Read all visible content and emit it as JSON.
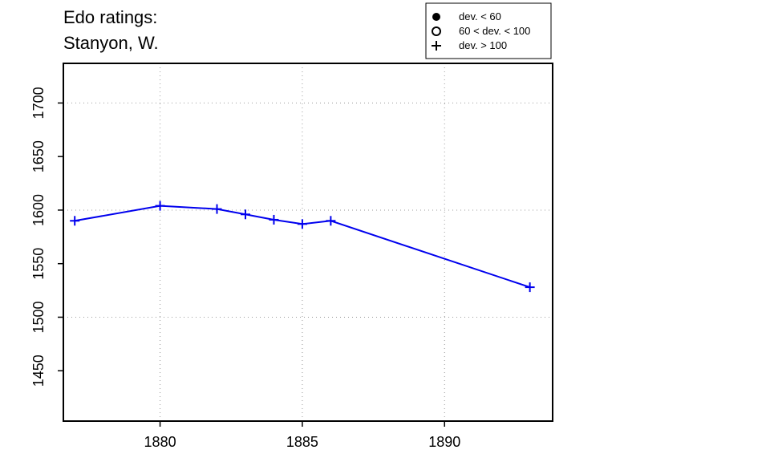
{
  "chart_data": {
    "type": "line",
    "title_lines": [
      "Edo ratings:",
      "Stanyon, W."
    ],
    "xlabel": "",
    "ylabel": "",
    "xlim": [
      1876.6,
      1893.8
    ],
    "ylim": [
      1403,
      1737
    ],
    "x_ticks": [
      1880,
      1885,
      1890
    ],
    "y_ticks": [
      1450,
      1500,
      1550,
      1600,
      1650,
      1700
    ],
    "grid": true,
    "grid_x": [
      1880,
      1885,
      1890
    ],
    "grid_y": [
      1500,
      1600,
      1700
    ],
    "series": [
      {
        "color": "#0000ee",
        "marker": "plus",
        "x": [
          1877,
          1880,
          1882,
          1883,
          1884,
          1885,
          1886,
          1893
        ],
        "y": [
          1590,
          1604,
          1601,
          1596,
          1591,
          1587,
          1590,
          1528
        ]
      }
    ],
    "legend": {
      "position": "top-right",
      "entries": [
        {
          "marker": "filled-circle",
          "label": "dev. < 60"
        },
        {
          "marker": "open-circle",
          "label": "60 < dev. < 100"
        },
        {
          "marker": "plus",
          "label": "dev. > 100"
        }
      ]
    }
  }
}
